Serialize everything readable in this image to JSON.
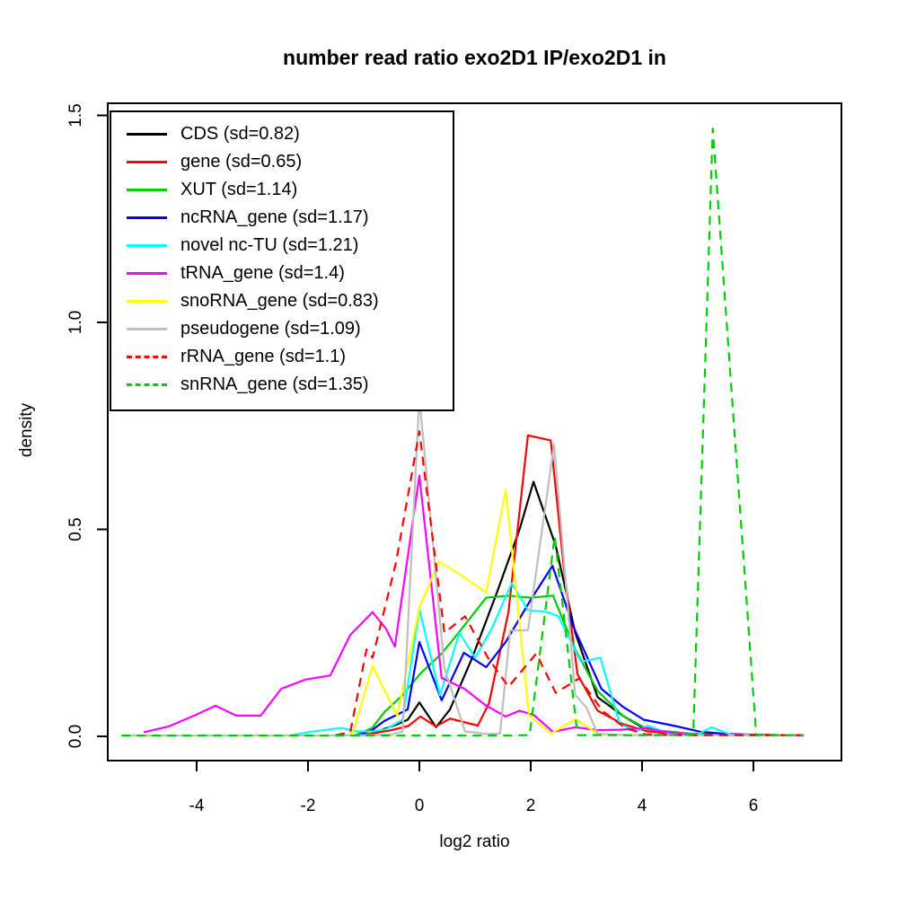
{
  "title": "number read ratio exo2D1 IP/exo2D1 in",
  "x_axis": {
    "label": "log2 ratio",
    "ticks": [
      "-4",
      "-2",
      "0",
      "2",
      "4",
      "6"
    ],
    "tick_values": [
      -4,
      -2,
      0,
      2,
      4,
      6
    ]
  },
  "y_axis": {
    "label": "density",
    "ticks": [
      "0.0",
      "0.5",
      "1.0",
      "1.5"
    ],
    "tick_values": [
      0,
      0.5,
      1.0,
      1.5
    ]
  },
  "chart_data": {
    "type": "line",
    "title": "number read ratio exo2D1 IP/exo2D1 in",
    "xlabel": "log2 ratio",
    "ylabel": "density",
    "xlim": [
      -5.597,
      7.581
    ],
    "ylim": [
      -0.0586,
      1.5293
    ],
    "grid": false,
    "legend_position": "top-left",
    "axis_color": "#000000",
    "background": "#ffffff",
    "series": [
      {
        "name": "CDS",
        "legend_label": "CDS (sd=0.82)",
        "sd": 0.82,
        "color": "#000000",
        "linetype": "solid",
        "points": [
          [
            -1.05,
            0.002
          ],
          [
            -0.85,
            0.006
          ],
          [
            -0.63,
            0.018
          ],
          [
            -0.42,
            0.028
          ],
          [
            -0.21,
            0.04
          ],
          [
            0.0,
            0.082
          ],
          [
            0.3,
            0.022
          ],
          [
            0.55,
            0.065
          ],
          [
            0.95,
            0.19
          ],
          [
            1.4,
            0.35
          ],
          [
            1.8,
            0.5
          ],
          [
            2.05,
            0.615
          ],
          [
            2.45,
            0.46
          ],
          [
            2.8,
            0.25
          ],
          [
            3.2,
            0.095
          ],
          [
            3.65,
            0.05
          ],
          [
            4.0,
            0.022
          ],
          [
            4.4,
            0.012
          ],
          [
            4.8,
            0.007
          ],
          [
            5.3,
            0.005
          ],
          [
            5.8,
            0.004
          ],
          [
            6.4,
            0.003
          ],
          [
            6.9,
            0.003
          ]
        ]
      },
      {
        "name": "gene",
        "legend_label": "gene (sd=0.65)",
        "sd": 0.65,
        "color": "#ff0000",
        "linetype": "solid",
        "points": [
          [
            -1.1,
            0.002
          ],
          [
            -0.8,
            0.008
          ],
          [
            -0.5,
            0.015
          ],
          [
            -0.2,
            0.025
          ],
          [
            0.02,
            0.048
          ],
          [
            0.3,
            0.024
          ],
          [
            0.55,
            0.043
          ],
          [
            1.05,
            0.026
          ],
          [
            1.25,
            0.08
          ],
          [
            1.6,
            0.3
          ],
          [
            1.95,
            0.727
          ],
          [
            2.36,
            0.715
          ],
          [
            2.6,
            0.4
          ],
          [
            2.84,
            0.15
          ],
          [
            3.2,
            0.062
          ],
          [
            3.65,
            0.03
          ],
          [
            4.1,
            0.012
          ],
          [
            4.6,
            0.006
          ],
          [
            5.1,
            0.004
          ],
          [
            5.6,
            0.003
          ],
          [
            6.2,
            0.003
          ],
          [
            6.9,
            0.003
          ]
        ]
      },
      {
        "name": "XUT",
        "legend_label": "XUT (sd=1.14)",
        "sd": 1.14,
        "color": "#00cd00",
        "linetype": "solid",
        "points": [
          [
            -1.15,
            0.003
          ],
          [
            -0.85,
            0.02
          ],
          [
            -0.63,
            0.058
          ],
          [
            -0.3,
            0.1
          ],
          [
            0.02,
            0.152
          ],
          [
            0.4,
            0.2
          ],
          [
            0.72,
            0.253
          ],
          [
            1.2,
            0.335
          ],
          [
            1.6,
            0.34
          ],
          [
            2.0,
            0.335
          ],
          [
            2.4,
            0.34
          ],
          [
            2.8,
            0.21
          ],
          [
            3.2,
            0.11
          ],
          [
            3.65,
            0.05
          ],
          [
            4.1,
            0.017
          ],
          [
            4.45,
            0.012
          ],
          [
            4.9,
            0.006
          ],
          [
            5.4,
            0.004
          ],
          [
            6.0,
            0.003
          ],
          [
            6.9,
            0.003
          ]
        ]
      },
      {
        "name": "ncRNA_gene",
        "legend_label": "ncRNA_gene (sd=1.17)",
        "sd": 1.17,
        "color": "#0000ff",
        "linetype": "solid",
        "points": [
          [
            -1.1,
            0.003
          ],
          [
            -0.85,
            0.015
          ],
          [
            -0.63,
            0.037
          ],
          [
            -0.21,
            0.065
          ],
          [
            0.0,
            0.228
          ],
          [
            0.4,
            0.087
          ],
          [
            0.8,
            0.202
          ],
          [
            1.2,
            0.167
          ],
          [
            1.55,
            0.228
          ],
          [
            2.0,
            0.33
          ],
          [
            2.39,
            0.412
          ],
          [
            2.76,
            0.267
          ],
          [
            3.27,
            0.115
          ],
          [
            3.65,
            0.072
          ],
          [
            4.03,
            0.04
          ],
          [
            4.56,
            0.026
          ],
          [
            5.05,
            0.011
          ],
          [
            5.5,
            0.006
          ],
          [
            6.0,
            0.004
          ],
          [
            6.5,
            0.003
          ],
          [
            6.9,
            0.002
          ]
        ]
      },
      {
        "name": "novel nc-TU",
        "legend_label": "novel nc-TU (sd=1.21)",
        "sd": 1.21,
        "color": "#00ffff",
        "linetype": "solid",
        "points": [
          [
            -2.3,
            0.003
          ],
          [
            -2.0,
            0.01
          ],
          [
            -1.55,
            0.018
          ],
          [
            -1.4,
            0.02
          ],
          [
            -1.1,
            0.012
          ],
          [
            -0.85,
            0.012
          ],
          [
            -0.6,
            0.017
          ],
          [
            -0.3,
            0.04
          ],
          [
            0.0,
            0.308
          ],
          [
            0.37,
            0.1
          ],
          [
            0.72,
            0.25
          ],
          [
            1.0,
            0.19
          ],
          [
            1.3,
            0.26
          ],
          [
            1.66,
            0.37
          ],
          [
            1.95,
            0.305
          ],
          [
            2.3,
            0.3
          ],
          [
            2.5,
            0.29
          ],
          [
            2.9,
            0.18
          ],
          [
            3.25,
            0.19
          ],
          [
            3.6,
            0.03
          ],
          [
            3.9,
            0.012
          ],
          [
            4.1,
            0.026
          ],
          [
            4.5,
            0.006
          ],
          [
            5.0,
            0.005
          ],
          [
            5.25,
            0.022
          ],
          [
            5.6,
            0.004
          ],
          [
            6.2,
            0.003
          ],
          [
            6.9,
            0.002
          ]
        ]
      },
      {
        "name": "tRNA_gene",
        "legend_label": "tRNA_gene (sd=1.4)",
        "sd": 1.4,
        "color": "#ff00ff",
        "linetype": "solid",
        "points": [
          [
            -4.95,
            0.01
          ],
          [
            -4.5,
            0.024
          ],
          [
            -4.08,
            0.048
          ],
          [
            -3.66,
            0.074
          ],
          [
            -3.29,
            0.05
          ],
          [
            -2.85,
            0.05
          ],
          [
            -2.48,
            0.115
          ],
          [
            -2.05,
            0.137
          ],
          [
            -1.6,
            0.147
          ],
          [
            -1.24,
            0.245
          ],
          [
            -0.84,
            0.3
          ],
          [
            -0.6,
            0.26
          ],
          [
            -0.44,
            0.217
          ],
          [
            0.0,
            0.63
          ],
          [
            0.4,
            0.141
          ],
          [
            0.81,
            0.115
          ],
          [
            1.18,
            0.076
          ],
          [
            1.55,
            0.048
          ],
          [
            1.8,
            0.062
          ],
          [
            2.05,
            0.052
          ],
          [
            2.4,
            0.011
          ],
          [
            2.8,
            0.022
          ],
          [
            3.2,
            0.015
          ],
          [
            3.6,
            0.016
          ],
          [
            4.05,
            0.02
          ],
          [
            4.4,
            0.011
          ],
          [
            4.9,
            0.004
          ]
        ]
      },
      {
        "name": "snoRNA_gene",
        "legend_label": "snoRNA_gene (sd=0.83)",
        "sd": 0.83,
        "color": "#ffff00",
        "linetype": "solid",
        "points": [
          [
            -1.3,
            0.003
          ],
          [
            -1.19,
            0.01
          ],
          [
            -0.84,
            0.17
          ],
          [
            -0.4,
            0.05
          ],
          [
            0.0,
            0.31
          ],
          [
            0.35,
            0.423
          ],
          [
            0.8,
            0.385
          ],
          [
            1.2,
            0.347
          ],
          [
            1.55,
            0.596
          ],
          [
            1.97,
            0.05
          ],
          [
            2.37,
            0.007
          ],
          [
            2.8,
            0.042
          ],
          [
            3.2,
            0.007
          ],
          [
            3.35,
            0.004
          ]
        ]
      },
      {
        "name": "pseudogene",
        "legend_label": "pseudogene (sd=1.09)",
        "sd": 1.09,
        "color": "#bebebe",
        "linetype": "solid",
        "points": [
          [
            -5.35,
            0.002
          ],
          [
            -4.2,
            0.002
          ],
          [
            -3.0,
            0.002
          ],
          [
            -1.8,
            0.002
          ],
          [
            -0.9,
            0.003
          ],
          [
            -0.5,
            0.004
          ],
          [
            -0.3,
            0.012
          ],
          [
            0.0,
            0.82
          ],
          [
            0.45,
            0.165
          ],
          [
            0.82,
            0.012
          ],
          [
            1.2,
            0.006
          ],
          [
            1.45,
            0.007
          ],
          [
            1.63,
            0.256
          ],
          [
            1.95,
            0.256
          ],
          [
            2.42,
            0.705
          ],
          [
            2.8,
            0.1
          ],
          [
            3.0,
            0.07
          ],
          [
            3.2,
            0.006
          ],
          [
            3.7,
            0.003
          ],
          [
            4.5,
            0.003
          ],
          [
            5.5,
            0.003
          ],
          [
            6.3,
            0.003
          ],
          [
            6.9,
            0.003
          ]
        ]
      },
      {
        "name": "rRNA_gene",
        "legend_label": "rRNA_gene (sd=1.1)",
        "sd": 1.1,
        "color": "#ff0000",
        "linetype": "dashed",
        "points": [
          [
            -1.5,
            0.003
          ],
          [
            -1.24,
            0.01
          ],
          [
            -0.95,
            0.21
          ],
          [
            -0.84,
            0.19
          ],
          [
            -0.42,
            0.42
          ],
          [
            0.0,
            0.737
          ],
          [
            0.45,
            0.25
          ],
          [
            0.82,
            0.29
          ],
          [
            1.23,
            0.19
          ],
          [
            1.6,
            0.12
          ],
          [
            2.1,
            0.2
          ],
          [
            2.45,
            0.105
          ],
          [
            2.87,
            0.14
          ],
          [
            3.3,
            0.06
          ],
          [
            3.7,
            0.02
          ],
          [
            4.05,
            0.005
          ],
          [
            4.6,
            0.003
          ],
          [
            5.2,
            0.003
          ],
          [
            5.8,
            0.003
          ],
          [
            6.4,
            0.003
          ],
          [
            6.88,
            0.003
          ]
        ]
      },
      {
        "name": "snRNA_gene",
        "legend_label": "snRNA_gene (sd=1.35)",
        "sd": 1.35,
        "color": "#00cd00",
        "linetype": "dashed",
        "points": [
          [
            -5.35,
            0.002
          ],
          [
            -4.4,
            0.002
          ],
          [
            -3.4,
            0.002
          ],
          [
            -2.4,
            0.002
          ],
          [
            -1.4,
            0.002
          ],
          [
            -0.4,
            0.002
          ],
          [
            0.6,
            0.002
          ],
          [
            1.5,
            0.002
          ],
          [
            1.98,
            0.003
          ],
          [
            2.43,
            0.484
          ],
          [
            2.84,
            0.003
          ],
          [
            3.6,
            0.003
          ],
          [
            4.3,
            0.003
          ],
          [
            4.92,
            0.004
          ],
          [
            5.27,
            1.468
          ],
          [
            6.05,
            0.004
          ],
          [
            6.5,
            0.003
          ],
          [
            6.9,
            0.003
          ]
        ]
      }
    ]
  }
}
